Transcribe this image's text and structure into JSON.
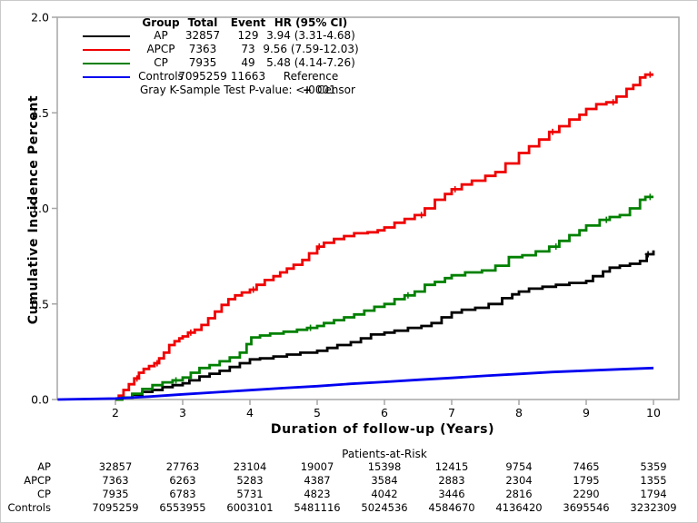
{
  "chart_data": {
    "type": "line",
    "title": "",
    "xlabel": "Duration of follow-up (Years)",
    "ylabel": "Cumulative Incidence Percent",
    "xlim": [
      1.14,
      10.4
    ],
    "ylim": [
      0.0,
      2.0
    ],
    "xticks": [
      2,
      3,
      4,
      5,
      6,
      7,
      8,
      9,
      10
    ],
    "yticks": [
      "0.0",
      "0.5",
      "1.0",
      "1.5",
      "2.0"
    ],
    "grid": false,
    "frame_color": "#a6a6a6",
    "series": [
      {
        "name": "AP",
        "color": "#000000",
        "step": true,
        "points": [
          [
            2,
            0
          ],
          [
            2.1,
            0.01
          ],
          [
            2.25,
            0.025
          ],
          [
            2.4,
            0.04
          ],
          [
            2.55,
            0.05
          ],
          [
            2.7,
            0.065
          ],
          [
            2.85,
            0.075
          ],
          [
            3.0,
            0.085
          ],
          [
            3.1,
            0.1
          ],
          [
            3.25,
            0.12
          ],
          [
            3.4,
            0.135
          ],
          [
            3.55,
            0.15
          ],
          [
            3.7,
            0.17
          ],
          [
            3.85,
            0.19
          ],
          [
            4.0,
            0.21
          ],
          [
            4.15,
            0.215
          ],
          [
            4.35,
            0.225
          ],
          [
            4.55,
            0.235
          ],
          [
            4.75,
            0.245
          ],
          [
            5.0,
            0.255
          ],
          [
            5.15,
            0.27
          ],
          [
            5.3,
            0.285
          ],
          [
            5.5,
            0.3
          ],
          [
            5.65,
            0.32
          ],
          [
            5.8,
            0.34
          ],
          [
            6.0,
            0.35
          ],
          [
            6.15,
            0.36
          ],
          [
            6.35,
            0.375
          ],
          [
            6.55,
            0.385
          ],
          [
            6.7,
            0.4
          ],
          [
            6.85,
            0.43
          ],
          [
            7.0,
            0.455
          ],
          [
            7.15,
            0.47
          ],
          [
            7.35,
            0.48
          ],
          [
            7.55,
            0.5
          ],
          [
            7.75,
            0.53
          ],
          [
            7.9,
            0.55
          ],
          [
            8.0,
            0.565
          ],
          [
            8.15,
            0.58
          ],
          [
            8.35,
            0.59
          ],
          [
            8.55,
            0.6
          ],
          [
            8.75,
            0.61
          ],
          [
            9.0,
            0.62
          ],
          [
            9.1,
            0.645
          ],
          [
            9.25,
            0.67
          ],
          [
            9.35,
            0.69
          ],
          [
            9.5,
            0.7
          ],
          [
            9.65,
            0.71
          ],
          [
            9.8,
            0.725
          ],
          [
            9.9,
            0.76
          ],
          [
            10,
            0.78
          ]
        ],
        "censors": [
          9.92
        ]
      },
      {
        "name": "APCP",
        "color": "#f00000",
        "step": true,
        "points": [
          [
            2,
            0
          ],
          [
            2.05,
            0.02
          ],
          [
            2.12,
            0.05
          ],
          [
            2.2,
            0.08
          ],
          [
            2.28,
            0.11
          ],
          [
            2.35,
            0.14
          ],
          [
            2.42,
            0.16
          ],
          [
            2.5,
            0.175
          ],
          [
            2.58,
            0.19
          ],
          [
            2.65,
            0.215
          ],
          [
            2.72,
            0.245
          ],
          [
            2.8,
            0.285
          ],
          [
            2.88,
            0.305
          ],
          [
            2.95,
            0.32
          ],
          [
            3.0,
            0.33
          ],
          [
            3.08,
            0.35
          ],
          [
            3.18,
            0.365
          ],
          [
            3.28,
            0.39
          ],
          [
            3.38,
            0.425
          ],
          [
            3.48,
            0.46
          ],
          [
            3.58,
            0.495
          ],
          [
            3.68,
            0.525
          ],
          [
            3.78,
            0.545
          ],
          [
            3.88,
            0.56
          ],
          [
            4.0,
            0.575
          ],
          [
            4.1,
            0.6
          ],
          [
            4.22,
            0.625
          ],
          [
            4.35,
            0.645
          ],
          [
            4.45,
            0.665
          ],
          [
            4.55,
            0.685
          ],
          [
            4.65,
            0.705
          ],
          [
            4.78,
            0.73
          ],
          [
            4.88,
            0.765
          ],
          [
            5.0,
            0.8
          ],
          [
            5.1,
            0.82
          ],
          [
            5.25,
            0.84
          ],
          [
            5.4,
            0.855
          ],
          [
            5.55,
            0.87
          ],
          [
            5.75,
            0.875
          ],
          [
            5.9,
            0.885
          ],
          [
            6.0,
            0.9
          ],
          [
            6.15,
            0.925
          ],
          [
            6.3,
            0.945
          ],
          [
            6.45,
            0.965
          ],
          [
            6.6,
            1.0
          ],
          [
            6.75,
            1.045
          ],
          [
            6.9,
            1.075
          ],
          [
            7.0,
            1.1
          ],
          [
            7.15,
            1.125
          ],
          [
            7.3,
            1.145
          ],
          [
            7.5,
            1.17
          ],
          [
            7.65,
            1.19
          ],
          [
            7.8,
            1.235
          ],
          [
            8.0,
            1.29
          ],
          [
            8.15,
            1.325
          ],
          [
            8.3,
            1.36
          ],
          [
            8.45,
            1.4
          ],
          [
            8.6,
            1.43
          ],
          [
            8.75,
            1.465
          ],
          [
            8.9,
            1.49
          ],
          [
            9.0,
            1.52
          ],
          [
            9.15,
            1.545
          ],
          [
            9.3,
            1.555
          ],
          [
            9.45,
            1.585
          ],
          [
            9.6,
            1.625
          ],
          [
            9.7,
            1.645
          ],
          [
            9.8,
            1.685
          ],
          [
            9.88,
            1.7
          ],
          [
            10,
            1.7
          ]
        ],
        "censors": [
          2.32,
          2.62,
          3.12,
          4.05,
          5.03,
          6.55,
          7.05,
          8.5,
          9.4,
          9.95
        ]
      },
      {
        "name": "CP",
        "color": "#008000",
        "step": true,
        "points": [
          [
            2,
            0
          ],
          [
            2.1,
            0.01
          ],
          [
            2.25,
            0.03
          ],
          [
            2.4,
            0.055
          ],
          [
            2.55,
            0.075
          ],
          [
            2.7,
            0.09
          ],
          [
            2.85,
            0.1
          ],
          [
            3.0,
            0.115
          ],
          [
            3.12,
            0.14
          ],
          [
            3.25,
            0.165
          ],
          [
            3.4,
            0.18
          ],
          [
            3.55,
            0.2
          ],
          [
            3.7,
            0.22
          ],
          [
            3.85,
            0.245
          ],
          [
            3.95,
            0.29
          ],
          [
            4.02,
            0.325
          ],
          [
            4.15,
            0.335
          ],
          [
            4.3,
            0.345
          ],
          [
            4.5,
            0.355
          ],
          [
            4.7,
            0.365
          ],
          [
            4.85,
            0.375
          ],
          [
            5.0,
            0.385
          ],
          [
            5.1,
            0.4
          ],
          [
            5.25,
            0.415
          ],
          [
            5.4,
            0.43
          ],
          [
            5.55,
            0.445
          ],
          [
            5.7,
            0.465
          ],
          [
            5.85,
            0.485
          ],
          [
            6.0,
            0.5
          ],
          [
            6.15,
            0.525
          ],
          [
            6.3,
            0.545
          ],
          [
            6.45,
            0.565
          ],
          [
            6.6,
            0.6
          ],
          [
            6.75,
            0.615
          ],
          [
            6.9,
            0.635
          ],
          [
            7.0,
            0.65
          ],
          [
            7.2,
            0.665
          ],
          [
            7.45,
            0.675
          ],
          [
            7.65,
            0.7
          ],
          [
            7.85,
            0.745
          ],
          [
            8.05,
            0.755
          ],
          [
            8.25,
            0.775
          ],
          [
            8.45,
            0.8
          ],
          [
            8.6,
            0.83
          ],
          [
            8.75,
            0.86
          ],
          [
            8.9,
            0.885
          ],
          [
            9.0,
            0.91
          ],
          [
            9.2,
            0.94
          ],
          [
            9.35,
            0.955
          ],
          [
            9.5,
            0.965
          ],
          [
            9.65,
            1.0
          ],
          [
            9.8,
            1.045
          ],
          [
            9.88,
            1.06
          ],
          [
            10,
            1.06
          ]
        ],
        "censors": [
          2.9,
          4.9,
          6.35,
          8.55,
          9.3,
          9.95
        ]
      },
      {
        "name": "Controls",
        "color": "#0000f0",
        "step": false,
        "points": [
          [
            1.14,
            0
          ],
          [
            2,
            0.005
          ],
          [
            2.5,
            0.015
          ],
          [
            3.0,
            0.027
          ],
          [
            3.5,
            0.038
          ],
          [
            4.0,
            0.049
          ],
          [
            4.5,
            0.06
          ],
          [
            5.0,
            0.07
          ],
          [
            5.5,
            0.082
          ],
          [
            6.0,
            0.092
          ],
          [
            6.5,
            0.103
          ],
          [
            7.0,
            0.113
          ],
          [
            7.5,
            0.124
          ],
          [
            8.0,
            0.134
          ],
          [
            8.5,
            0.144
          ],
          [
            9.0,
            0.151
          ],
          [
            9.5,
            0.158
          ],
          [
            10,
            0.165
          ]
        ],
        "censors": []
      }
    ],
    "legend": {
      "headers": [
        "Group",
        "Total",
        "Event",
        "HR (95% CI)"
      ],
      "rows": [
        {
          "group": "AP",
          "total": "32857",
          "event": "129",
          "hr": "3.94 (3.31-4.68)"
        },
        {
          "group": "APCP",
          "total": "7363",
          "event": "73",
          "hr": "9.56 (7.59-12.03)"
        },
        {
          "group": "CP",
          "total": "7935",
          "event": "49",
          "hr": "5.48 (4.14-7.26)"
        },
        {
          "group": "Controls",
          "total": "7095259",
          "event": "11663",
          "hr": "Reference"
        }
      ],
      "footnote": "Gray K-Sample Test P-value: <.0001",
      "censor_symbol": "+",
      "censor_label": "Censor"
    },
    "at_risk": {
      "title": "Patients-at-Risk",
      "years": [
        2,
        3,
        4,
        5,
        6,
        7,
        8,
        9,
        10
      ],
      "rows": [
        {
          "label": "AP",
          "values": [
            "32857",
            "27763",
            "23104",
            "19007",
            "15398",
            "12415",
            "9754",
            "7465",
            "5359"
          ]
        },
        {
          "label": "APCP",
          "values": [
            "7363",
            "6263",
            "5283",
            "4387",
            "3584",
            "2883",
            "2304",
            "1795",
            "1355"
          ]
        },
        {
          "label": "CP",
          "values": [
            "7935",
            "6783",
            "5731",
            "4823",
            "4042",
            "3446",
            "2816",
            "2290",
            "1794"
          ]
        },
        {
          "label": "Controls",
          "values": [
            "7095259",
            "6553955",
            "6003101",
            "5481116",
            "5024536",
            "4584670",
            "4136420",
            "3695546",
            "3232309"
          ]
        }
      ]
    }
  }
}
